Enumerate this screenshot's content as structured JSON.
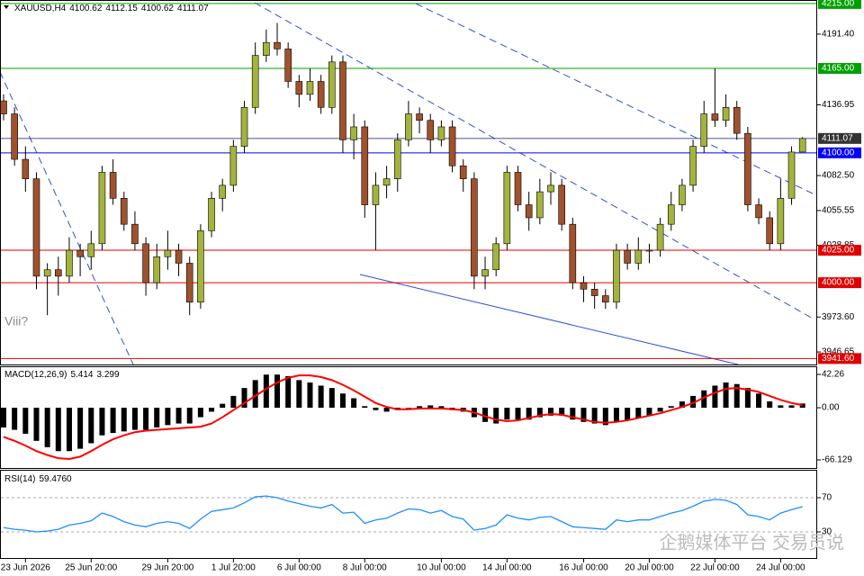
{
  "chart_data": [
    {
      "type": "candlestick",
      "title": "XAUUSD,H4",
      "annotation": "Viii?",
      "watermark": "企鹅媒体平台 交易员说",
      "up_color": "#a3b33c",
      "down_color": "#a0522d",
      "ylim": [
        3937,
        4217
      ],
      "yticks": [
        {
          "value": 4191.4,
          "label": "4191.40"
        },
        {
          "value": 4136.95,
          "label": "4136.95"
        },
        {
          "value": 4082.5,
          "label": "4082.50"
        },
        4055.55,
        {
          "value": 4028.85,
          "label": "4028.85"
        },
        {
          "value": 3973.6,
          "label": "3973.60"
        },
        3946.65
      ],
      "levels": [
        {
          "value": 4215,
          "label": "4215.00",
          "color": "#00a000"
        },
        {
          "value": 4165,
          "label": "4165.00",
          "color": "#00a000"
        },
        {
          "value": 4100,
          "label": "4100.00",
          "color": "#0000ff"
        },
        {
          "value": 4025,
          "label": "4025.00",
          "color": "#e00000"
        },
        {
          "value": 4000,
          "label": "4000.00",
          "color": "#e00000"
        },
        {
          "value": 3941.6,
          "label": "3941.60",
          "color": "#e00000"
        }
      ],
      "ohlc": [
        [
          4140,
          4145,
          4125,
          4130
        ],
        [
          4130,
          4135,
          4090,
          4095
        ],
        [
          4095,
          4105,
          4070,
          4080
        ],
        [
          4080,
          4085,
          3995,
          4005
        ],
        [
          4005,
          4015,
          3975,
          4010
        ],
        [
          4010,
          4020,
          3990,
          4005
        ],
        [
          4005,
          4035,
          4000,
          4025
        ],
        [
          4025,
          4030,
          4005,
          4020
        ],
        [
          4020,
          4040,
          4010,
          4030
        ],
        [
          4030,
          4090,
          4025,
          4085
        ],
        [
          4085,
          4095,
          4060,
          4065
        ],
        [
          4065,
          4070,
          4040,
          4045
        ],
        [
          4045,
          4055,
          4025,
          4030
        ],
        [
          4030,
          4035,
          3990,
          4000
        ],
        [
          4000,
          4030,
          3995,
          4020
        ],
        [
          4020,
          4040,
          4010,
          4025
        ],
        [
          4025,
          4030,
          4005,
          4015
        ],
        [
          4015,
          4020,
          3975,
          3985
        ],
        [
          3985,
          4045,
          3980,
          4040
        ],
        [
          4040,
          4070,
          4035,
          4065
        ],
        [
          4065,
          4080,
          4055,
          4075
        ],
        [
          4075,
          4110,
          4070,
          4105
        ],
        [
          4105,
          4140,
          4100,
          4135
        ],
        [
          4135,
          4185,
          4130,
          4175
        ],
        [
          4175,
          4195,
          4170,
          4185
        ],
        [
          4185,
          4200,
          4175,
          4180
        ],
        [
          4180,
          4185,
          4150,
          4155
        ],
        [
          4155,
          4160,
          4135,
          4145
        ],
        [
          4145,
          4165,
          4140,
          4155
        ],
        [
          4155,
          4160,
          4130,
          4135
        ],
        [
          4135,
          4175,
          4130,
          4170
        ],
        [
          4170,
          4175,
          4100,
          4110
        ],
        [
          4110,
          4130,
          4095,
          4120
        ],
        [
          4120,
          4125,
          4050,
          4060
        ],
        [
          4060,
          4085,
          4025,
          4075
        ],
        [
          4075,
          4090,
          4065,
          4080
        ],
        [
          4080,
          4115,
          4070,
          4110
        ],
        [
          4110,
          4140,
          4105,
          4130
        ],
        [
          4130,
          4135,
          4115,
          4125
        ],
        [
          4125,
          4130,
          4100,
          4110
        ],
        [
          4110,
          4125,
          4105,
          4120
        ],
        [
          4120,
          4125,
          4085,
          4090
        ],
        [
          4090,
          4095,
          4070,
          4080
        ],
        [
          4080,
          4085,
          3995,
          4005
        ],
        [
          4005,
          4020,
          3995,
          4010
        ],
        [
          4010,
          4035,
          4005,
          4030
        ],
        [
          4030,
          4090,
          4025,
          4085
        ],
        [
          4085,
          4090,
          4055,
          4060
        ],
        [
          4060,
          4070,
          4040,
          4050
        ],
        [
          4050,
          4080,
          4045,
          4070
        ],
        [
          4070,
          4085,
          4060,
          4075
        ],
        [
          4075,
          4080,
          4040,
          4045
        ],
        [
          4045,
          4050,
          3995,
          4000
        ],
        [
          4000,
          4005,
          3985,
          3995
        ],
        [
          3995,
          4000,
          3980,
          3990
        ],
        [
          3990,
          3995,
          3980,
          3985
        ],
        [
          3985,
          4030,
          3980,
          4025
        ],
        [
          4025,
          4030,
          4010,
          4015
        ],
        [
          4015,
          4035,
          4010,
          4025
        ],
        [
          4025,
          4030,
          4015,
          4025
        ],
        [
          4025,
          4050,
          4020,
          4045
        ],
        [
          4045,
          4070,
          4040,
          4060
        ],
        [
          4060,
          4080,
          4055,
          4075
        ],
        [
          4075,
          4110,
          4070,
          4105
        ],
        [
          4105,
          4140,
          4100,
          4130
        ],
        [
          4130,
          4165,
          4120,
          4125
        ],
        [
          4125,
          4145,
          4120,
          4135
        ],
        [
          4135,
          4140,
          4110,
          4115
        ],
        [
          4115,
          4120,
          4055,
          4060
        ],
        [
          4060,
          4065,
          4045,
          4050
        ],
        [
          4050,
          4055,
          4025,
          4030
        ],
        [
          4030,
          4080,
          4025,
          4065
        ],
        [
          4065,
          4105,
          4060,
          4100.62
        ],
        [
          4100.62,
          4112.15,
          4100.62,
          4111.07
        ]
      ]
    },
    {
      "type": "macd",
      "title": "MACD(12,26,9)",
      "ylim": [
        -66.129,
        42.26
      ],
      "yticks": [
        42.26,
        {
          "value": 0,
          "label": "0.00"
        },
        -66.129
      ],
      "series": [
        {
          "color": "#000000",
          "values": [
            -25,
            -28,
            -33,
            -42,
            -50,
            -55,
            -55,
            -52,
            -45,
            -35,
            -32,
            -30,
            -28,
            -28,
            -25,
            -22,
            -20,
            -20,
            -12,
            -5,
            5,
            15,
            25,
            35,
            42,
            42,
            40,
            35,
            32,
            28,
            25,
            18,
            12,
            2,
            -3,
            -5,
            -3,
            0,
            2,
            3,
            2,
            -3,
            -5,
            -12,
            -18,
            -20,
            -15,
            -15,
            -15,
            -12,
            -10,
            -10,
            -15,
            -18,
            -20,
            -22,
            -18,
            -16,
            -13,
            -10,
            -5,
            2,
            8,
            15,
            22,
            28,
            32,
            30,
            25,
            18,
            8,
            3,
            3,
            5.414
          ]
        },
        {
          "color": "#ff0000",
          "values": [
            -37,
            -42,
            -48,
            -55,
            -60,
            -64,
            -65,
            -62,
            -55,
            -47,
            -40,
            -35,
            -31,
            -29,
            -28,
            -27,
            -26,
            -25,
            -24,
            -20,
            -12,
            -3,
            6,
            15,
            24,
            32,
            38,
            41,
            41,
            39,
            35,
            29,
            22,
            14,
            6,
            1,
            -2,
            -2,
            -1,
            -1,
            -1,
            -2,
            -3,
            -6,
            -11,
            -15,
            -17,
            -16,
            -13,
            -10,
            -8,
            -9,
            -12,
            -15,
            -18,
            -19,
            -18,
            -16,
            -13,
            -10,
            -7,
            -3,
            1,
            6,
            13,
            19,
            24,
            25,
            23,
            20,
            15,
            10,
            6,
            3.299
          ]
        }
      ]
    },
    {
      "type": "line",
      "title": "RSI(14)",
      "ylim": [
        0,
        100
      ],
      "yticks": [
        70,
        30
      ],
      "series": [
        {
          "color": "#1e90ff",
          "values": [
            35,
            33,
            32,
            30,
            31,
            33,
            38,
            40,
            43,
            52,
            48,
            42,
            38,
            36,
            40,
            42,
            40,
            34,
            45,
            54,
            56,
            58,
            64,
            71,
            72,
            70,
            66,
            63,
            60,
            58,
            62,
            52,
            53,
            40,
            44,
            46,
            52,
            57,
            56,
            52,
            55,
            48,
            45,
            32,
            34,
            38,
            50,
            46,
            44,
            47,
            48,
            42,
            36,
            35,
            34,
            33,
            44,
            42,
            44,
            44,
            48,
            52,
            55,
            60,
            66,
            68,
            67,
            62,
            50,
            48,
            44,
            52,
            56,
            59.476
          ],
          "value_labels": [
            null,
            null,
            null,
            null,
            null,
            null,
            null,
            null,
            null,
            null,
            null,
            null,
            null,
            null,
            null,
            null,
            null,
            null,
            null,
            null,
            null,
            null,
            null,
            null,
            null,
            null,
            null,
            null,
            null,
            null,
            null,
            null,
            null,
            null,
            null,
            null,
            null,
            null,
            null,
            null,
            null,
            null,
            null,
            null,
            null,
            null,
            null,
            null,
            null,
            null,
            null,
            null,
            null,
            null,
            null,
            null,
            null,
            null,
            null,
            null,
            null,
            null,
            null,
            null,
            null,
            null,
            null,
            null,
            null,
            null,
            null,
            null,
            null,
            "59.4760"
          ]
        }
      ],
      "xticks": [
        {
          "value": 2,
          "label": "23 Jun 2026"
        },
        {
          "value": 8,
          "label": "25 Jun 20:00"
        },
        {
          "value": 15,
          "label": "29 Jun 20:00"
        },
        {
          "value": 21,
          "label": "1 Jul 20:00"
        },
        {
          "value": 27,
          "label": "6 Jul 00:00"
        },
        {
          "value": 33,
          "label": "8 Jul 00:00"
        },
        {
          "value": 40,
          "label": "10 Jul 00:00"
        },
        {
          "value": 46,
          "label": "14 Jul 00:00"
        },
        {
          "value": 53,
          "label": "16 Jul 00:00"
        },
        {
          "value": 59,
          "label": "20 Jul 00:00"
        },
        {
          "value": 65,
          "label": "22 Jul 00:00"
        },
        {
          "value": 71,
          "label": "24 Jul 00:00"
        }
      ]
    }
  ]
}
